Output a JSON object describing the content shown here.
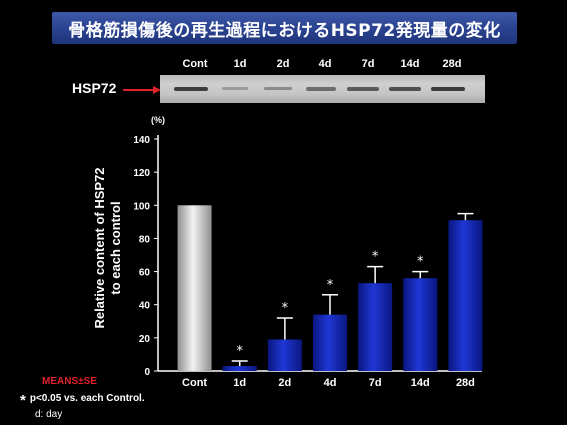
{
  "title": "骨格筋損傷後の再生過程におけるHSP72発現量の変化",
  "blot": {
    "protein": "HSP72",
    "lanes": [
      "Cont",
      "1d",
      "2d",
      "4d",
      "7d",
      "14d",
      "28d"
    ]
  },
  "chart_data": {
    "type": "bar",
    "categories": [
      "Cont",
      "1d",
      "2d",
      "4d",
      "7d",
      "14d",
      "28d"
    ],
    "values": [
      100,
      3,
      19,
      34,
      53,
      56,
      91
    ],
    "errors": [
      0,
      3,
      13,
      12,
      10,
      4,
      4
    ],
    "significant": [
      false,
      true,
      true,
      true,
      true,
      true,
      false
    ],
    "ylabel_line1": "Relative content of HSP72",
    "ylabel_line2": "to each control",
    "yunit": "(%)",
    "ylim": [
      0,
      140
    ],
    "yticks": [
      "0",
      "20",
      "40",
      "60",
      "80",
      "100",
      "120",
      "140"
    ],
    "colors": {
      "control": "#c8c8c8",
      "treated": "#1f37d6"
    }
  },
  "legend": {
    "means": "MEANS±SE",
    "star": "*",
    "p_note": "p<0.05 vs. each Control.",
    "d_note": "d: day"
  }
}
